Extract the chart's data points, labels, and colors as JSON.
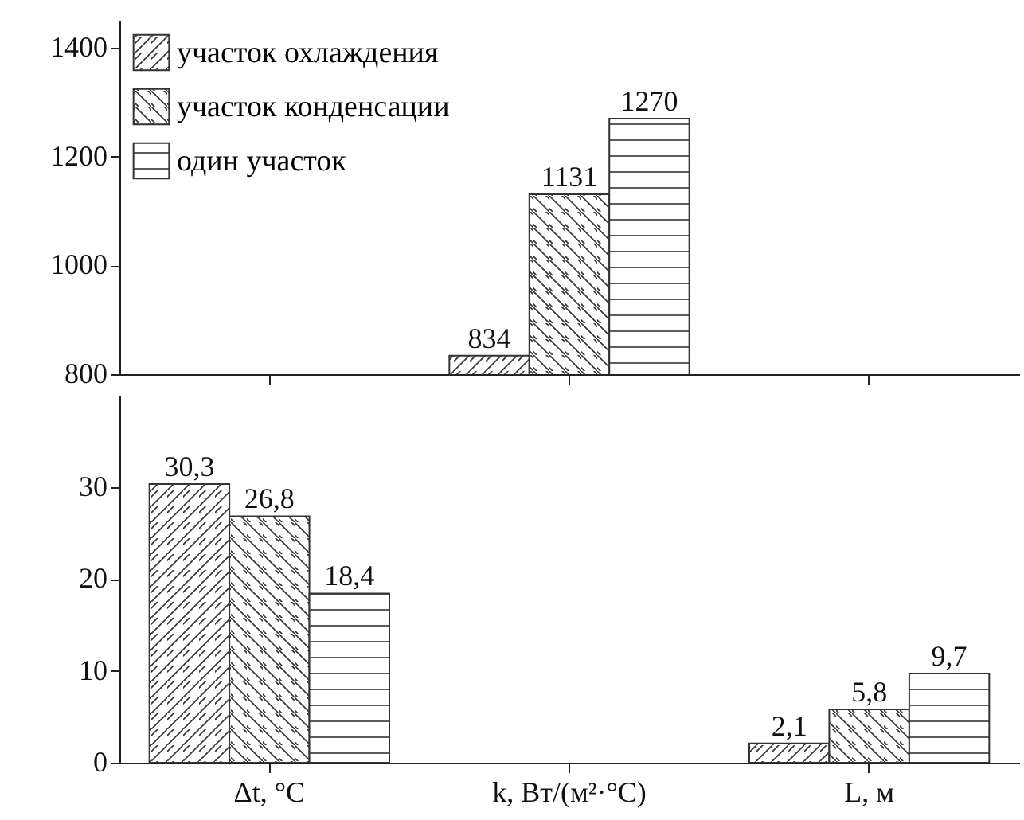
{
  "chart_data": [
    {
      "type": "bar",
      "categories": [
        null,
        null,
        null
      ],
      "ylim": [
        800,
        1450
      ],
      "yticks": [
        800,
        1000,
        1200,
        1400
      ],
      "tick_labels": "y",
      "legend": "top left",
      "grid": false,
      "series": [
        {
          "name": "участок охлаждения",
          "color": "#333333",
          "values": [
            null,
            834,
            null
          ],
          "value_labels": [
            null,
            "834",
            null
          ]
        },
        {
          "name": "участок конденсации",
          "color": "#333333",
          "values": [
            null,
            1131,
            null
          ],
          "value_labels": [
            null,
            "1131",
            null
          ]
        },
        {
          "name": "один участок",
          "color": "#333333",
          "values": [
            null,
            1270,
            null
          ],
          "value_labels": [
            null,
            "1270",
            null
          ]
        }
      ]
    },
    {
      "type": "bar",
      "categories": [
        "Δt, °C",
        "k, Вт/(м²·°C)",
        "L, м"
      ],
      "ylim": [
        0,
        40
      ],
      "yticks": [
        0,
        10,
        20,
        30
      ],
      "grid": false,
      "legend": false,
      "series": [
        {
          "color": "#333333",
          "values": [
            30.3,
            null,
            2.1
          ],
          "value_labels": [
            "30,3",
            null,
            "2,1"
          ]
        },
        {
          "color": "#333333",
          "values": [
            26.8,
            null,
            5.8
          ],
          "value_labels": [
            "26,8",
            null,
            "5,8"
          ]
        },
        {
          "color": "#333333",
          "values": [
            18.4,
            null,
            9.7
          ],
          "value_labels": [
            "18,4",
            null,
            "9,7"
          ]
        }
      ]
    }
  ]
}
